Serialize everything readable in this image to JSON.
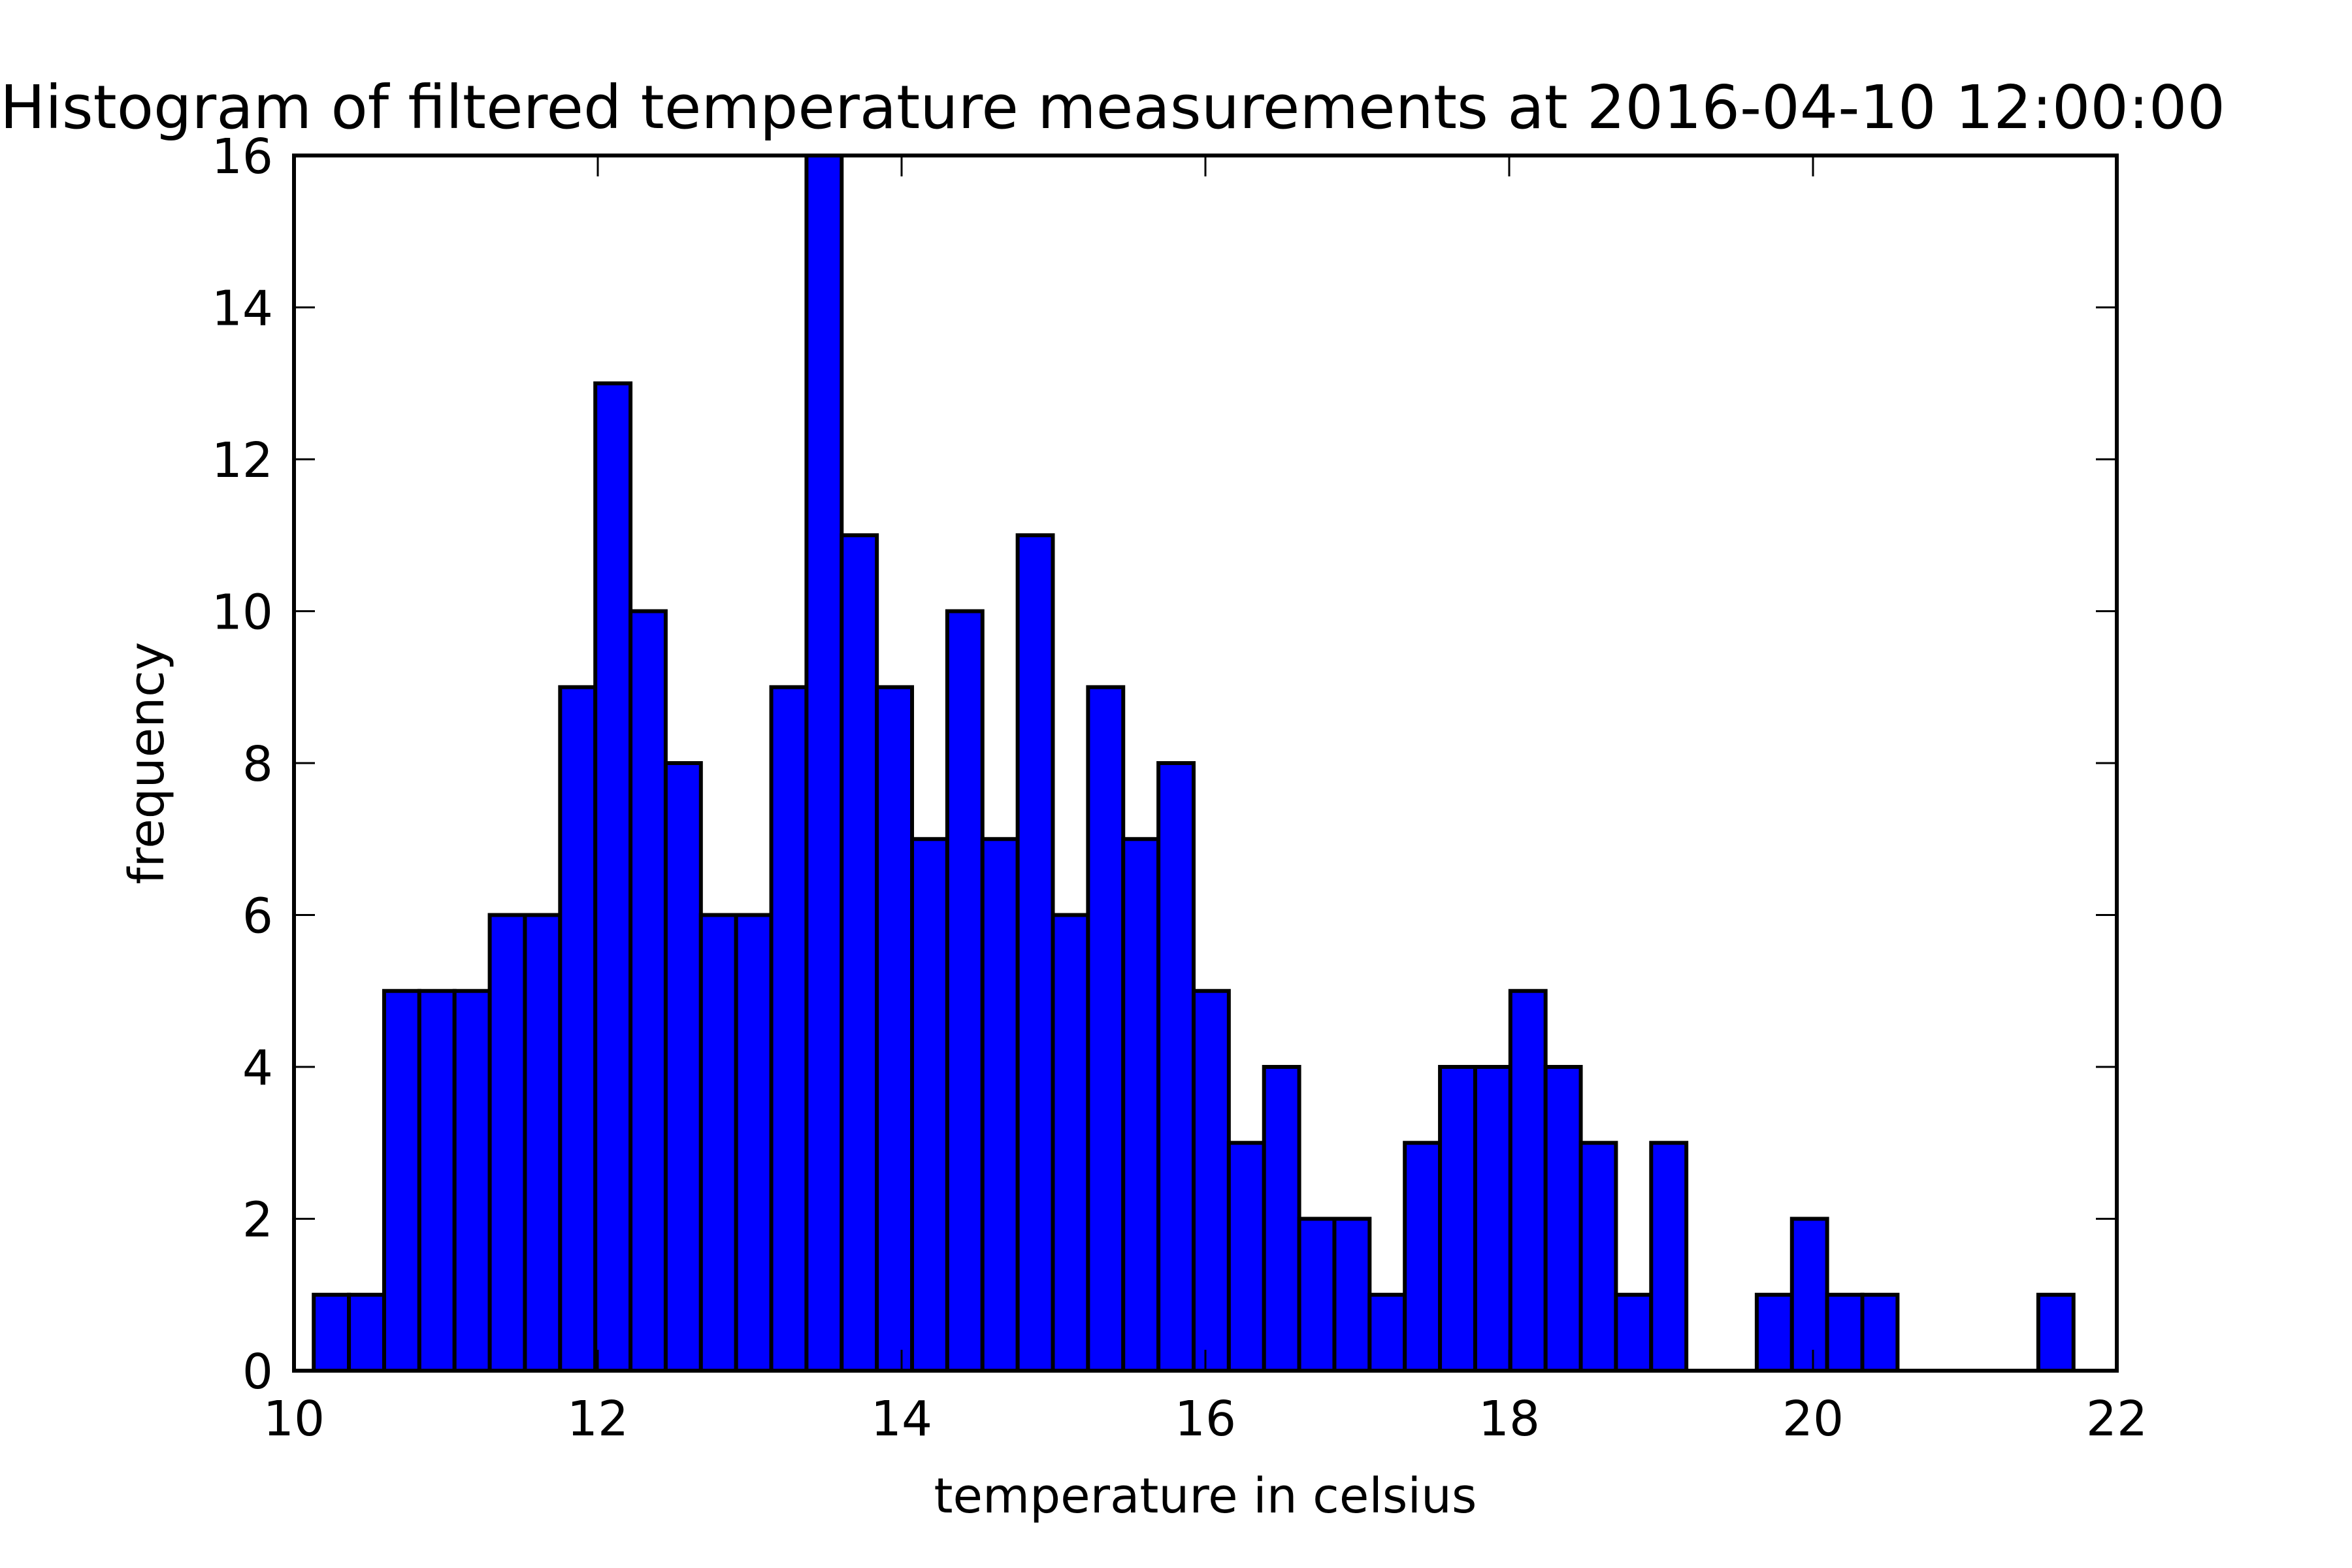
{
  "chart_data": {
    "type": "bar",
    "title": "Histogram of filtered temperature measurements at 2016-04-10 12:00:00",
    "xlabel": "temperature in celsius",
    "ylabel": "frequency",
    "xlim": [
      10,
      22
    ],
    "ylim": [
      0,
      16
    ],
    "x_ticks": [
      "10",
      "12",
      "14",
      "16",
      "18",
      "20",
      "22"
    ],
    "y_ticks": [
      "0",
      "2",
      "4",
      "6",
      "8",
      "10",
      "12",
      "14",
      "16"
    ],
    "grid": false,
    "bar_color": "#0000ff",
    "edge_color": "#000000",
    "bin_start": 10.13,
    "bin_width": 0.2317,
    "counts": [
      1,
      1,
      5,
      5,
      5,
      6,
      6,
      9,
      13,
      10,
      8,
      6,
      6,
      9,
      16,
      11,
      9,
      7,
      10,
      7,
      11,
      6,
      9,
      7,
      8,
      5,
      3,
      4,
      2,
      2,
      1,
      3,
      4,
      4,
      5,
      4,
      3,
      1,
      3,
      0,
      0,
      1,
      2,
      1,
      1,
      0,
      0,
      0,
      0,
      1
    ]
  }
}
